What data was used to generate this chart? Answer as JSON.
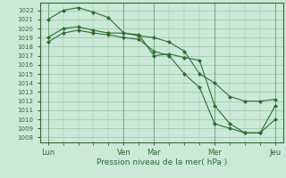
{
  "background_color": "#cce8d8",
  "grid_color": "#99c4aa",
  "line_color": "#2d6e2d",
  "marker_color": "#2d6e2d",
  "ylabel_ticks": [
    1008,
    1009,
    1010,
    1011,
    1012,
    1013,
    1014,
    1015,
    1016,
    1017,
    1018,
    1019,
    1020,
    1021,
    1022
  ],
  "ylim": [
    1007.5,
    1022.8
  ],
  "xlabel": "Pression niveau de la mer( hPa )",
  "xtick_labels": [
    "Lun",
    "Ven",
    "Mar",
    "Mer",
    "Jeu"
  ],
  "xtick_positions": [
    0,
    10,
    14,
    22,
    30
  ],
  "xlim": [
    -1,
    31
  ],
  "line1_x": [
    0,
    2,
    4,
    6,
    8,
    10,
    12,
    14,
    16,
    18,
    20,
    22,
    24,
    26,
    28,
    30
  ],
  "line1_y": [
    1021.0,
    1022.0,
    1022.3,
    1021.8,
    1021.2,
    1019.5,
    1019.3,
    1017.0,
    1017.2,
    1016.8,
    1016.5,
    1011.5,
    1009.5,
    1008.5,
    1008.5,
    1011.5
  ],
  "line2_x": [
    0,
    2,
    4,
    6,
    8,
    10,
    12,
    14,
    16,
    18,
    20,
    22,
    24,
    26,
    28,
    30
  ],
  "line2_y": [
    1019.0,
    1020.0,
    1020.2,
    1019.8,
    1019.5,
    1019.5,
    1019.2,
    1019.0,
    1018.5,
    1017.5,
    1015.0,
    1014.0,
    1012.5,
    1012.0,
    1012.0,
    1012.2
  ],
  "line3_x": [
    0,
    2,
    4,
    6,
    8,
    10,
    12,
    14,
    16,
    18,
    20,
    22,
    24,
    26,
    28,
    30
  ],
  "line3_y": [
    1018.5,
    1019.5,
    1019.8,
    1019.5,
    1019.3,
    1019.0,
    1018.8,
    1017.5,
    1017.0,
    1015.0,
    1013.5,
    1009.5,
    1009.0,
    1008.5,
    1008.5,
    1010.0
  ]
}
